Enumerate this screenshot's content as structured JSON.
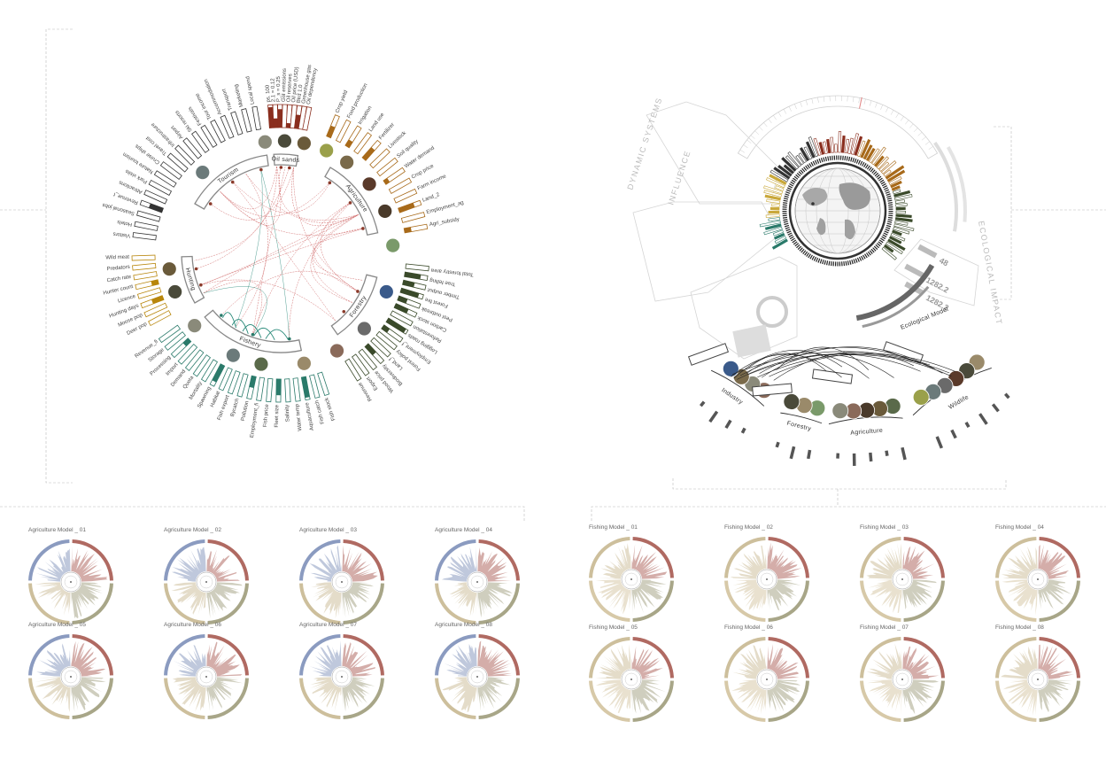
{
  "left_diagram": {
    "sectors": [
      {
        "id": "tourism",
        "label": "Tourism",
        "color": "#444444"
      },
      {
        "id": "oil_sands",
        "label": "Oil sands",
        "color": "#8a2e1e"
      },
      {
        "id": "agriculture",
        "label": "Agriculture",
        "color": "#a86a1a"
      },
      {
        "id": "forestry",
        "label": "Forestry",
        "color": "#3a4a2a"
      },
      {
        "id": "fishery",
        "label": "Fishery",
        "color": "#2a7a6a"
      },
      {
        "id": "hunting",
        "label": "Hunting",
        "color": "#b8860b"
      }
    ],
    "oil_labels": [
      "ps. 100",
      "2.1 = 0.12",
      "P_s = 0.25",
      "GoI emissions",
      "Oil reserves",
      "Oil price (USD)",
      "Bird 1.0",
      "Greenhouse gas",
      "Oil dependency"
    ],
    "agri_labels": [
      "Crop yield",
      "Food production",
      "Irrigation",
      "Land use",
      "Fertilizer",
      "Livestock",
      "Soil quality",
      "Water demand",
      "Crop price",
      "Farm income",
      "Land_2",
      "Employment_ag",
      "Agri_subsidy"
    ],
    "forestry_labels": [
      "Total forestry area",
      "Tree felling",
      "Timber output",
      "Forest fire",
      "Pest outbreak",
      "Carbon stock",
      "Reforestation",
      "Logging roads",
      "Employment_f",
      "Forest policy",
      "Land_f",
      "Biodiversity",
      "Wood price",
      "Export",
      "Revenue"
    ],
    "fishery_labels": [
      "Fish stock",
      "Fish catch",
      "Aquaculture",
      "Water temp",
      "Salinity",
      "Fleet size",
      "Fish price",
      "Employment_fi",
      "Pollution",
      "Bycatch",
      "Fish export",
      "Habitat",
      "Spawning",
      "Mortality",
      "Quota",
      "Demand",
      "Import",
      "Processing",
      "Storage",
      "Revenue_fi"
    ],
    "hunting_labels": [
      "Deer pop",
      "Moose pop",
      "Hunting days",
      "Licence",
      "Hunter count",
      "Catch rate",
      "Predators",
      "Wild meat"
    ],
    "tourism_labels": [
      "Visitors",
      "Hotels",
      "Seasonal jobs",
      "Revenue_t",
      "Attractions",
      "Park visits",
      "Nature tourism",
      "Cruise ships",
      "Travel cost",
      "Infrastructure",
      "Airport",
      "Ski resorts",
      "Festivals",
      "Tour income",
      "Accommodation",
      "Transport",
      "Marketing",
      "Local spend"
    ]
  },
  "right_diagram": {
    "ghost_title": "DYNAMIC SYSTEMS",
    "ghost_sub_1": "INFLUENCE",
    "ghost_sub_2": "ECOLOGICAL IMPACT",
    "gauge_values": [
      "48",
      "1282.2",
      "1282.2"
    ],
    "bottom_groups": [
      "Industry",
      "Forestry",
      "Agriculture",
      "Wildlife"
    ],
    "bottom_bar_label": "Ecological Model"
  },
  "agriculture_models": [
    "Agriculture Model _ 01",
    "Agriculture Model _ 02",
    "Agriculture Model _ 03",
    "Agriculture Model _ 04",
    "Agriculture Model _ 05",
    "Agriculture Model _ 06",
    "Agriculture Model _ 07",
    "Agriculture Model _ 08"
  ],
  "fishing_models": [
    "Fishing Model _ 01",
    "Fishing Model _ 02",
    "Fishing Model _ 03",
    "Fishing Model _ 04",
    "Fishing Model _ 05",
    "Fishing Model _ 06",
    "Fishing Model _ 07",
    "Fishing Model _ 08"
  ],
  "colors": {
    "agri_q1": "#8b9bc0",
    "agri_q2": "#b06a62",
    "agri_q3": "#a8a688",
    "agri_q4": "#cdbf9c",
    "fish_q1": "#cdbf9c",
    "fish_q2": "#b06a62",
    "fish_q3": "#a8a688",
    "fish_q4": "#d7c9a8",
    "oil": "#8a2e1e",
    "agri": "#a86a1a",
    "forest": "#3a4a2a",
    "fish": "#2a7a6a",
    "hunt": "#b8860b",
    "link_red": "#c85050",
    "link_teal": "#2a8a7a"
  }
}
